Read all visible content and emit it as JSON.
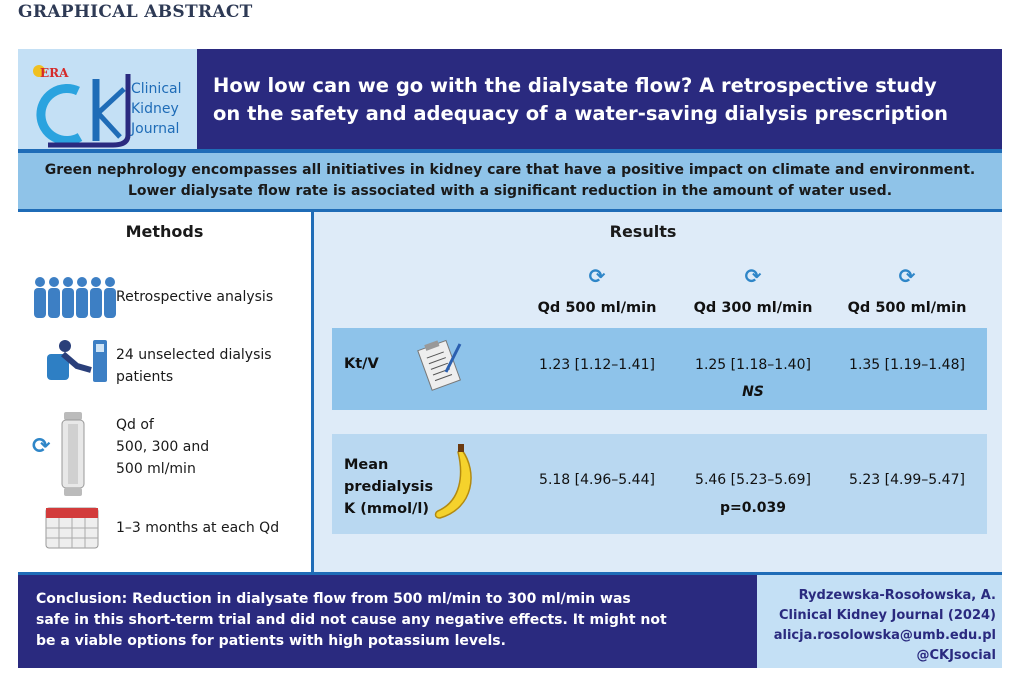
{
  "label": "GRAPHICAL ABSTRACT",
  "logo": {
    "era": "ERA",
    "letters": "ckj",
    "line1": "Clinical",
    "line2": "Kidney",
    "line3": "Journal"
  },
  "title": {
    "line1": "How low can we go with the dialysate flow? A retrospective study",
    "line2": "on the safety and adequacy of a water-saving dialysis prescription"
  },
  "intro": {
    "line1": "Green nephrology encompasses all initiatives in kidney care that have a positive impact on climate and environment.",
    "line2": "Lower dialysate flow rate is associated with a significant reduction in the amount of water used."
  },
  "methods": {
    "heading": "Methods",
    "items": [
      {
        "icon": "people-icon",
        "text": "Retrospective analysis"
      },
      {
        "icon": "dialysis-patient-icon",
        "text1": "24 unselected dialysis",
        "text2": "patients"
      },
      {
        "icon": "dialyzer-icon",
        "text1": "Qd of",
        "text2": "500, 300 and",
        "text3": "500 ml/min"
      },
      {
        "icon": "calendar-icon",
        "text": "1–3 months at each Qd"
      }
    ]
  },
  "results": {
    "heading": "Results",
    "columns": [
      "Qd 500 ml/min",
      "Qd 300 ml/min",
      "Qd 500 ml/min"
    ],
    "rows": [
      {
        "label": "Kt/V",
        "icon": "clipboard-icon",
        "values": [
          "1.23 [1.12–1.41]",
          "1.25 [1.18–1.40]",
          "1.35 [1.19–1.48]"
        ],
        "stat": "NS",
        "color": "#8ec3ea"
      },
      {
        "label1": "Mean",
        "label2": "predialysis",
        "label3": "K (mmol/l)",
        "icon": "banana-icon",
        "values": [
          "5.18 [4.96–5.44]",
          "5.46 [5.23–5.69]",
          "5.23 [4.99–5.47]"
        ],
        "stat": "p=0.039",
        "color": "#b9d8f1"
      }
    ]
  },
  "conclusion": {
    "line1": "Conclusion: Reduction in dialysate flow from 500 ml/min to 300 ml/min was",
    "line2": "safe in this short-term trial and did not cause any negative effects. It might not",
    "line3": "be a viable options for patients with high potassium levels."
  },
  "credit": {
    "author": "Rydzewska-Rosołowska, A.",
    "journal": "Clinical Kidney Journal (2024)",
    "email": "alicja.rosolowska@umb.edu.pl",
    "social": "@CKJsocial"
  },
  "colors": {
    "navy": "#2a2a7f",
    "accent": "#1f6cb7",
    "light": "#deebf8"
  }
}
